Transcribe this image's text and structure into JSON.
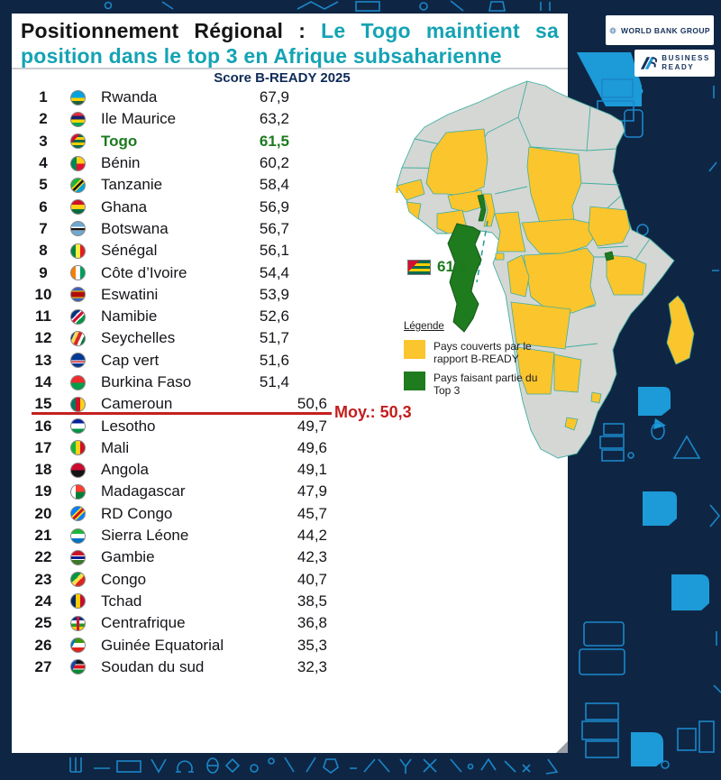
{
  "header": {
    "title_black": "Positionnement Régional",
    "title_colon": " : ",
    "title_teal": "Le Togo maintient sa position dans le top 3 en Afrique subsaharienne"
  },
  "logos": {
    "world_bank": "WORLD BANK GROUP",
    "business_line1": "BUSINESS",
    "business_line2": "READY"
  },
  "list": {
    "header": "Score B-READY 2025",
    "rows": [
      {
        "rank": "1",
        "country": "Rwanda",
        "score": "67,9",
        "top3": false,
        "shifted": false,
        "flag": "linear-gradient(180deg,#00A3E0 0% 50%,#FAD201 50% 72%,#20603D 72% 100%)"
      },
      {
        "rank": "2",
        "country": "Ile Maurice",
        "score": "63,2",
        "top3": false,
        "shifted": false,
        "flag": "linear-gradient(180deg,#EA2839 0% 25%,#1A206D 25% 50%,#FFD500 50% 75%,#00A551 75% 100%)"
      },
      {
        "rank": "3",
        "country": "Togo",
        "score": "61,5",
        "top3": true,
        "shifted": false,
        "flag": "linear-gradient(135deg,#D21034 0% 32%,rgba(0,0,0,0) 32%),linear-gradient(180deg,#006A4E 0% 20%,#FFCE00 20% 40%,#006A4E 40% 60%,#FFCE00 60% 80%,#006A4E 80% 100%)"
      },
      {
        "rank": "4",
        "country": "Bénin",
        "score": "60,2",
        "top3": false,
        "shifted": false,
        "flag": "linear-gradient(90deg,#008751 0% 40%,rgba(0,0,0,0) 40%),linear-gradient(180deg,#FCD116 0% 50%,#E8112D 50% 100%)"
      },
      {
        "rank": "5",
        "country": "Tanzanie",
        "score": "58,4",
        "top3": false,
        "shifted": false,
        "flag": "linear-gradient(135deg,#1EB53A 0% 38%,#FCD116 38% 45%,#141414 45% 58%,#FCD116 58% 64%,#00A3DD 64% 100%)"
      },
      {
        "rank": "6",
        "country": "Ghana",
        "score": "56,9",
        "top3": false,
        "shifted": false,
        "flag": "linear-gradient(180deg,#CE1126 0% 33%,#FCD116 33% 66%,#006B3F 66% 100%)"
      },
      {
        "rank": "7",
        "country": "Botswana",
        "score": "56,7",
        "top3": false,
        "shifted": false,
        "flag": "linear-gradient(180deg,#6DA9D2 0% 38%,#ffffff 38% 45%,#141414 45% 62%,#ffffff 62% 68%,#6DA9D2 68% 100%)"
      },
      {
        "rank": "8",
        "country": "Sénégal",
        "score": "56,1",
        "top3": false,
        "shifted": false,
        "flag": "linear-gradient(90deg,#00853F 0% 33%,#FDEF42 33% 66%,#E31B23 66% 100%)"
      },
      {
        "rank": "9",
        "country": "Côte d’Ivoire",
        "score": "54,4",
        "top3": false,
        "shifted": false,
        "flag": "linear-gradient(90deg,#F77F00 0% 33%,#ffffff 33% 66%,#009E60 66% 100%)"
      },
      {
        "rank": "10",
        "country": "Eswatini",
        "score": "53,9",
        "top3": false,
        "shifted": false,
        "flag": "linear-gradient(180deg,#3E5EB9 0% 22%,#FFD900 22% 30%,#B10C0C 30% 70%,#FFD900 70% 78%,#3E5EB9 78% 100%)"
      },
      {
        "rank": "11",
        "country": "Namibie",
        "score": "52,6",
        "top3": false,
        "shifted": false,
        "flag": "linear-gradient(135deg,#003580 0% 35%,#ffffff 35% 42%,#D21034 42% 58%,#ffffff 58% 65%,#009543 65% 100%)"
      },
      {
        "rank": "12",
        "country": "Seychelles",
        "score": "51,7",
        "top3": false,
        "shifted": false,
        "flag": "linear-gradient(115deg,#003F87 0% 20%,#FCD856 20% 40%,#D62828 40% 60%,#ffffff 60% 75%,#007A3D 75% 100%)"
      },
      {
        "rank": "13",
        "country": "Cap vert",
        "score": "51,6",
        "top3": false,
        "shifted": false,
        "flag": "linear-gradient(180deg,#003893 0% 50%,#ffffff 50% 58%,#CF2027 58% 66%,#ffffff 66% 74%,#003893 74% 100%)"
      },
      {
        "rank": "14",
        "country": "Burkina Faso",
        "score": "51,4",
        "top3": false,
        "shifted": false,
        "flag": "linear-gradient(180deg,#EF2B2D 0% 50%,#009E49 50% 100%)"
      },
      {
        "rank": "15",
        "country": "Cameroun",
        "score": "50,6",
        "top3": false,
        "shifted": true,
        "flag": "linear-gradient(90deg,#007A5E 0% 33%,#CE1126 33% 66%,#FCD116 66% 100%)"
      },
      {
        "rank": "16",
        "country": "Lesotho",
        "score": "49,7",
        "top3": false,
        "shifted": true,
        "flag": "linear-gradient(180deg,#00209F 0% 30%,#ffffff 30% 70%,#009543 70% 100%)"
      },
      {
        "rank": "17",
        "country": "Mali",
        "score": "49,6",
        "top3": false,
        "shifted": true,
        "flag": "linear-gradient(90deg,#14B53A 0% 33%,#FCD116 33% 66%,#CE1126 66% 100%)"
      },
      {
        "rank": "18",
        "country": "Angola",
        "score": "49,1",
        "top3": false,
        "shifted": true,
        "flag": "linear-gradient(180deg,#CC092F 0% 50%,#141414 50% 100%)"
      },
      {
        "rank": "19",
        "country": "Madagascar",
        "score": "47,9",
        "top3": false,
        "shifted": true,
        "flag": "linear-gradient(90deg,#ffffff 0% 33%,rgba(0,0,0,0) 33%),linear-gradient(180deg,#FC3D32 0% 50%,#007E3A 50% 100%)"
      },
      {
        "rank": "20",
        "country": "RD Congo",
        "score": "45,7",
        "top3": false,
        "shifted": true,
        "flag": "linear-gradient(135deg,#007FFF 0% 38%,#F7D618 38% 46%,#CE1021 46% 60%,#F7D618 60% 68%,#007FFF 68% 100%)"
      },
      {
        "rank": "21",
        "country": "Sierra Léone",
        "score": "44,2",
        "top3": false,
        "shifted": true,
        "flag": "linear-gradient(180deg,#1EB53A 0% 33%,#ffffff 33% 66%,#0072C6 66% 100%)"
      },
      {
        "rank": "22",
        "country": "Gambie",
        "score": "42,3",
        "top3": false,
        "shifted": true,
        "flag": "linear-gradient(180deg,#CE1126 0% 33%,#ffffff 33% 40%,#0C1C8C 40% 60%,#ffffff 60% 67%,#3A7728 67% 100%)"
      },
      {
        "rank": "23",
        "country": "Congo",
        "score": "40,7",
        "top3": false,
        "shifted": true,
        "flag": "linear-gradient(135deg,#009543 0% 40%,#FBDE4A 40% 60%,#DC241F 60% 100%)"
      },
      {
        "rank": "24",
        "country": "Tchad",
        "score": "38,5",
        "top3": false,
        "shifted": true,
        "flag": "linear-gradient(90deg,#002664 0% 33%,#FECB00 33% 66%,#C60C30 66% 100%)"
      },
      {
        "rank": "25",
        "country": "Centrafrique",
        "score": "36,8",
        "top3": false,
        "shifted": true,
        "flag": "linear-gradient(90deg,rgba(0,0,0,0) 0% 40%,#D21034 40% 60%,rgba(0,0,0,0) 60%),linear-gradient(180deg,#003082 0% 25%,#ffffff 25% 50%,#289728 50% 75%,#FFCE00 75% 100%)"
      },
      {
        "rank": "26",
        "country": "Guinée Equatorial",
        "score": "35,3",
        "top3": false,
        "shifted": true,
        "flag": "linear-gradient(115deg,#0073CE 0% 25%,rgba(0,0,0,0) 25%),linear-gradient(180deg,#3E9A00 0% 33%,#ffffff 33% 66%,#E32118 66% 100%)"
      },
      {
        "rank": "27",
        "country": "Soudan du sud",
        "score": "32,3",
        "top3": false,
        "shifted": true,
        "flag": "linear-gradient(115deg,#0F47AF 0% 30%,rgba(0,0,0,0) 30%),linear-gradient(180deg,#141414 0% 30%,#ffffff 30% 36%,#DA121A 36% 64%,#ffffff 64% 70%,#078930 70% 100%)"
      }
    ]
  },
  "average": {
    "label": "Moy.: 50,3"
  },
  "map": {
    "callout_score": "61,5",
    "legend_title": "Légende",
    "legend": [
      {
        "color": "#FBC52D",
        "label": "Pays couverts par le rapport B-READY"
      },
      {
        "color": "#1E7B1E",
        "label": "Pays faisant partie du Top 3"
      }
    ]
  },
  "colors": {
    "background_navy": "#0e2644",
    "doodle_blue": "#1d9ad8",
    "doodle_outline": "#1b86c8",
    "title_teal": "#14a3b4",
    "score_header_navy": "#0e2a56",
    "togo_green": "#1c7a1e",
    "average_red": "#c41d1d",
    "map_gray": "#d5d7d4",
    "map_yellow": "#FBC52D",
    "map_green": "#1E7B1E",
    "map_border_teal": "#3fafa0"
  }
}
